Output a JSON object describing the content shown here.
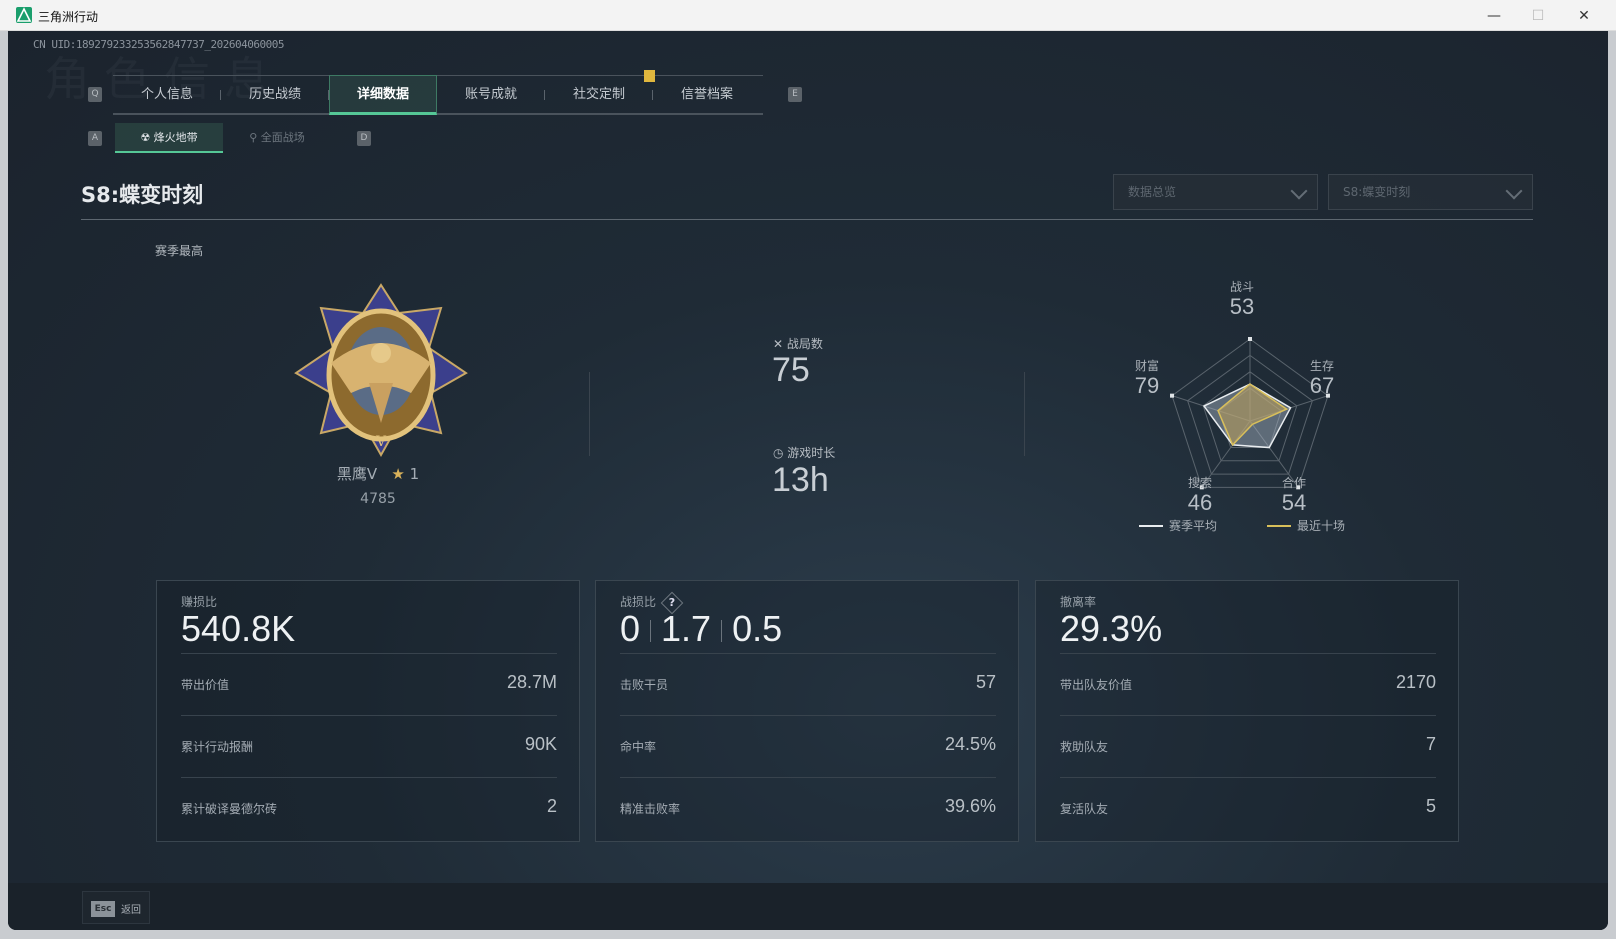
{
  "window": {
    "title": "三角洲行动",
    "minimize": "—",
    "maximize": "☐",
    "close": "✕"
  },
  "uid": "CN UID:189279233253562847737_202604060005",
  "ghost_title": "角色信息",
  "tabs": {
    "prev_key": "Q",
    "next_key": "E",
    "items": [
      {
        "label": "个人信息",
        "active": false
      },
      {
        "label": "历史战绩",
        "active": false
      },
      {
        "label": "详细数据",
        "active": true
      },
      {
        "label": "账号成就",
        "active": false
      },
      {
        "label": "社交定制",
        "active": false
      },
      {
        "label": "信誉档案",
        "active": false
      }
    ]
  },
  "subtabs": {
    "prev_key": "A",
    "next_key": "D",
    "items": [
      {
        "label": "烽火地带",
        "icon": "hazard-icon",
        "active": true
      },
      {
        "label": "全面战场",
        "icon": "battlefield-icon",
        "active": false
      }
    ]
  },
  "season": {
    "title": "S8:蝶变时刻"
  },
  "filters": {
    "view": "数据总览",
    "season": "S8:蝶变时刻"
  },
  "rank": {
    "heading": "赛季最高",
    "name": "黑鹰V",
    "stars": "1",
    "score": "4785",
    "medal_letter": "V"
  },
  "overview": {
    "matches_label": "战局数",
    "matches_value": "75",
    "playtime_label": "游戏时长",
    "playtime_value": "13h"
  },
  "radar": {
    "axes": [
      {
        "label": "战斗",
        "value": "53"
      },
      {
        "label": "生存",
        "value": "67"
      },
      {
        "label": "合作",
        "value": "54"
      },
      {
        "label": "搜索",
        "value": "46"
      },
      {
        "label": "财富",
        "value": "79"
      }
    ],
    "series": [
      {
        "name": "赛季平均",
        "color": "#e8ecef",
        "values": [
          45,
          52,
          40,
          36,
          59
        ]
      },
      {
        "name": "最近十场",
        "color": "#d8bf5a",
        "values": [
          45,
          47,
          5,
          36,
          41
        ]
      }
    ]
  },
  "panels": [
    {
      "label": "赚损比",
      "big": "540.8K",
      "help": false,
      "rows": [
        {
          "k": "带出价值",
          "v": "28.7M"
        },
        {
          "k": "累计行动报酬",
          "v": "90K"
        },
        {
          "k": "累计破译曼德尔砖",
          "v": "2"
        }
      ]
    },
    {
      "label": "战损比",
      "help": true,
      "help_glyph": "?",
      "kd": [
        "0",
        "1.7",
        "0.5"
      ],
      "rows": [
        {
          "k": "击败干员",
          "v": "57"
        },
        {
          "k": "命中率",
          "v": "24.5%"
        },
        {
          "k": "精准击败率",
          "v": "39.6%"
        }
      ]
    },
    {
      "label": "撤离率",
      "big": "29.3%",
      "help": false,
      "rows": [
        {
          "k": "带出队友价值",
          "v": "2170"
        },
        {
          "k": "救助队友",
          "v": "7"
        },
        {
          "k": "复活队友",
          "v": "5"
        }
      ]
    }
  ],
  "footer": {
    "esc_key": "Esc",
    "back_label": "返回"
  },
  "colors": {
    "accent": "#55c796",
    "notification": "#e0b73e",
    "gold": "#d8bf5a"
  }
}
